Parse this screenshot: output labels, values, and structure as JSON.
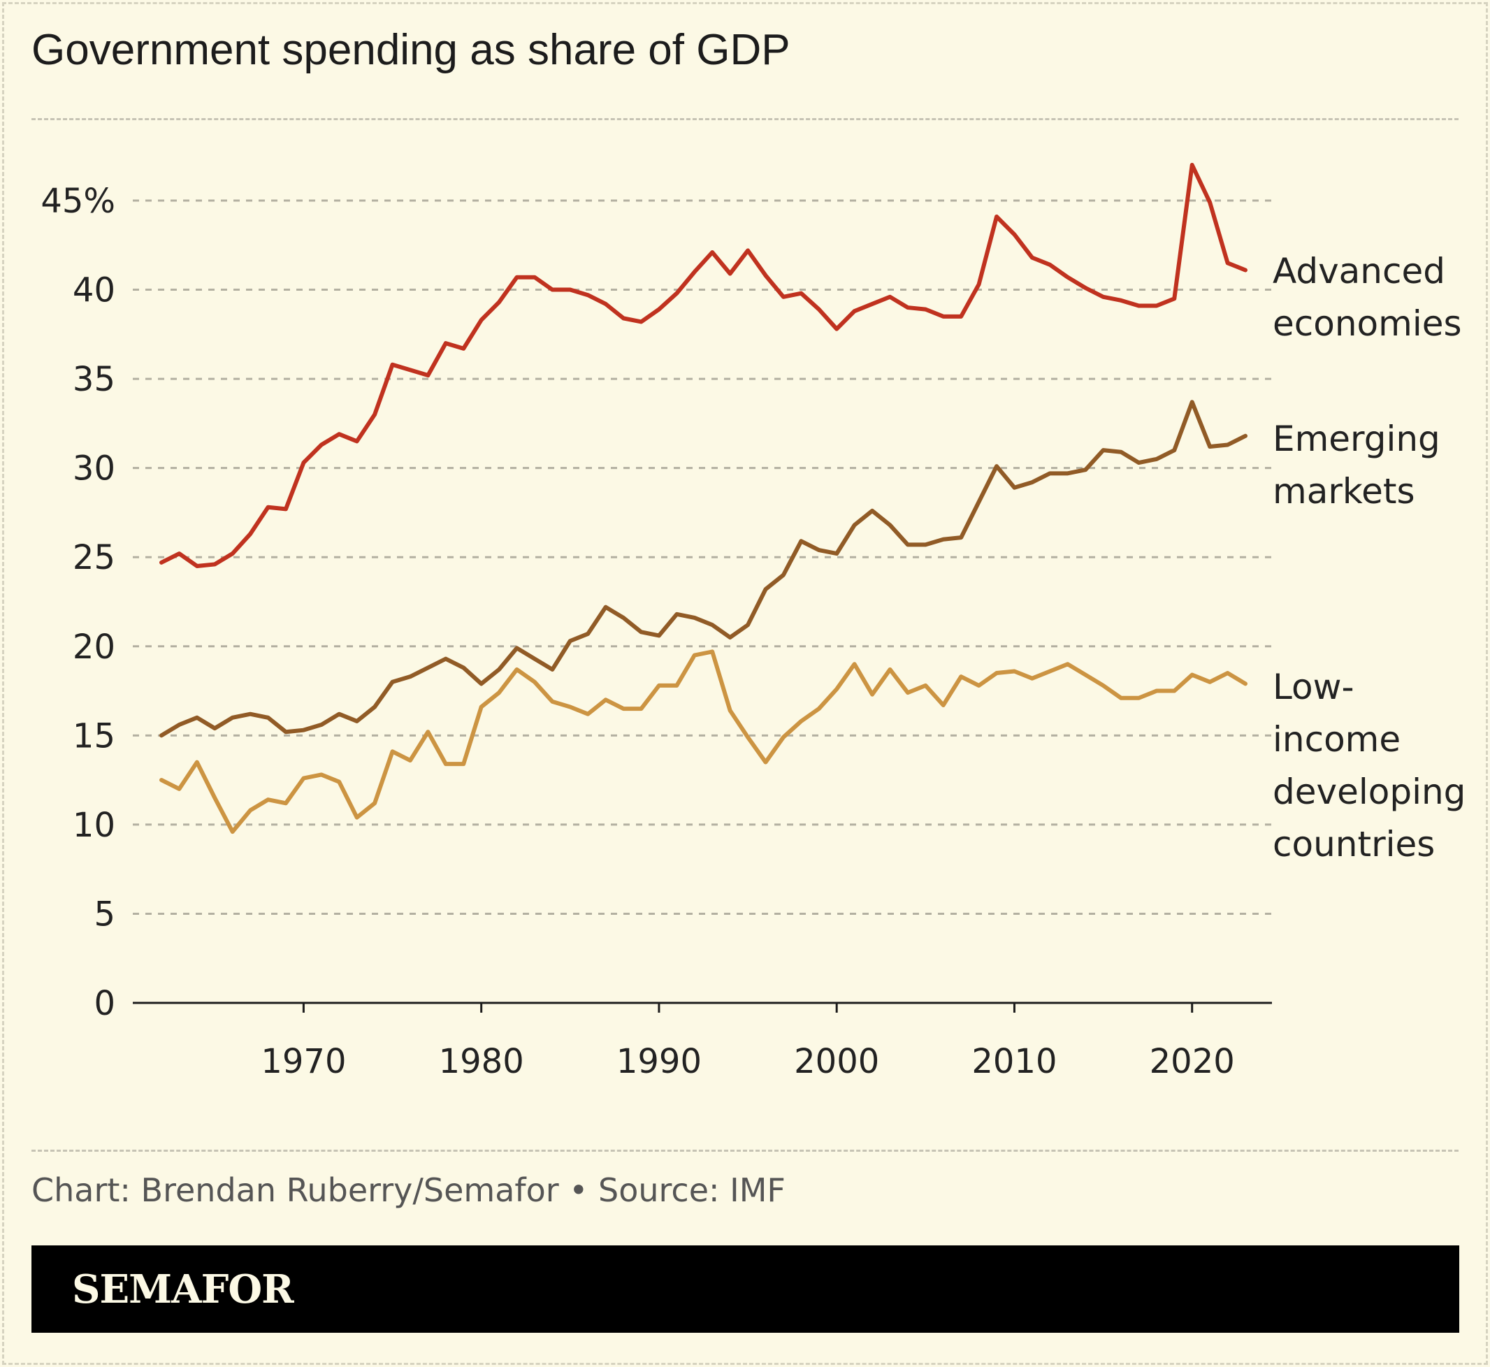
{
  "chart_data": {
    "type": "line",
    "title": "Government spending as share of GDP",
    "xlabel": "",
    "ylabel": "",
    "ylim": [
      0,
      45
    ],
    "xlim": [
      1962,
      2023
    ],
    "y_ticks": [
      "0",
      "5",
      "10",
      "15",
      "20",
      "25",
      "30",
      "35",
      "40",
      "45%"
    ],
    "x_ticks": [
      "1970",
      "1980",
      "1990",
      "2000",
      "2010",
      "2020"
    ],
    "grid": true,
    "legend": "direct labels at right",
    "x": [
      1962,
      1963,
      1964,
      1965,
      1966,
      1967,
      1968,
      1969,
      1970,
      1971,
      1972,
      1973,
      1974,
      1975,
      1976,
      1977,
      1978,
      1979,
      1980,
      1981,
      1982,
      1983,
      1984,
      1985,
      1986,
      1987,
      1988,
      1989,
      1990,
      1991,
      1992,
      1993,
      1994,
      1995,
      1996,
      1997,
      1998,
      1999,
      2000,
      2001,
      2002,
      2003,
      2004,
      2005,
      2006,
      2007,
      2008,
      2009,
      2010,
      2011,
      2012,
      2013,
      2014,
      2015,
      2016,
      2017,
      2018,
      2019,
      2020,
      2021,
      2022,
      2023
    ],
    "series": [
      {
        "name": "Advanced economies",
        "label_lines": [
          "Advanced",
          "economies"
        ],
        "color": "#c0321f",
        "values": [
          24.7,
          25.2,
          24.5,
          24.6,
          25.2,
          26.3,
          27.8,
          27.7,
          30.3,
          31.3,
          31.9,
          31.5,
          33.0,
          35.8,
          35.5,
          35.2,
          37.0,
          36.7,
          38.3,
          39.3,
          40.7,
          40.7,
          40.0,
          40.0,
          39.7,
          39.2,
          38.4,
          38.2,
          38.9,
          39.8,
          41.0,
          42.1,
          40.9,
          42.2,
          40.8,
          39.6,
          39.8,
          38.9,
          37.8,
          38.8,
          39.2,
          39.6,
          39.0,
          38.9,
          38.5,
          38.5,
          40.3,
          44.1,
          43.1,
          41.8,
          41.4,
          40.7,
          40.1,
          39.6,
          39.4,
          39.1,
          39.1,
          39.5,
          47.0,
          44.9,
          41.5,
          41.1
        ]
      },
      {
        "name": "Emerging markets",
        "label_lines": [
          "Emerging",
          "markets"
        ],
        "color": "#915b26",
        "values": [
          15.0,
          15.6,
          16.0,
          15.4,
          16.0,
          16.2,
          16.0,
          15.2,
          15.3,
          15.6,
          16.2,
          15.8,
          16.6,
          18.0,
          18.3,
          18.8,
          19.3,
          18.8,
          17.9,
          18.7,
          19.9,
          19.3,
          18.7,
          20.3,
          20.7,
          22.2,
          21.6,
          20.8,
          20.6,
          21.8,
          21.6,
          21.2,
          20.5,
          21.2,
          23.2,
          24.0,
          25.9,
          25.4,
          25.2,
          26.8,
          27.6,
          26.8,
          25.7,
          25.7,
          26.0,
          26.1,
          28.1,
          30.1,
          28.9,
          29.2,
          29.7,
          29.7,
          29.9,
          31.0,
          30.9,
          30.3,
          30.5,
          31.0,
          33.7,
          31.2,
          31.3,
          31.8
        ]
      },
      {
        "name": "Low-income developing countries",
        "label_lines": [
          "Low-",
          "income",
          "developing",
          "countries"
        ],
        "color": "#cc9442",
        "values": [
          12.5,
          12.0,
          13.5,
          11.5,
          9.6,
          10.8,
          11.4,
          11.2,
          12.6,
          12.8,
          12.4,
          10.4,
          11.2,
          14.1,
          13.6,
          15.2,
          13.4,
          13.4,
          16.6,
          17.4,
          18.7,
          18.0,
          16.9,
          16.6,
          16.2,
          17.0,
          16.5,
          16.5,
          17.8,
          17.8,
          19.5,
          19.7,
          16.4,
          14.9,
          13.5,
          14.9,
          15.8,
          16.5,
          17.6,
          19.0,
          17.3,
          18.7,
          17.4,
          17.8,
          16.7,
          18.3,
          17.8,
          18.5,
          18.6,
          18.2,
          18.6,
          19.0,
          18.4,
          17.8,
          17.1,
          17.1,
          17.5,
          17.5,
          18.4,
          18.0,
          18.5,
          17.9
        ]
      }
    ]
  },
  "credit": "Chart: Brendan Ruberry/Semafor • Source: IMF",
  "logo": "SEMAFOR",
  "background": "#fcf9e5"
}
